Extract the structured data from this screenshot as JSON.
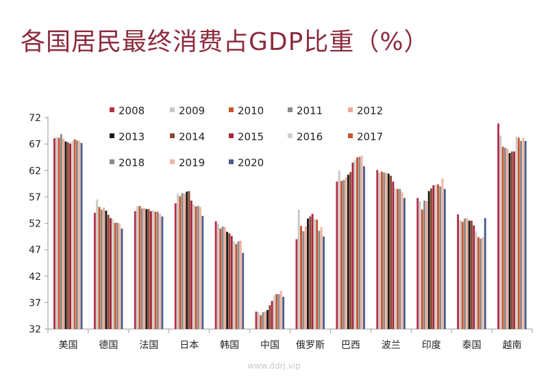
{
  "chart_data": {
    "type": "bar",
    "title": "各国居民最终消费占GDP比重（%）",
    "xlabel": "",
    "ylabel": "",
    "ylim": [
      32,
      72
    ],
    "yticks": [
      32,
      37,
      42,
      47,
      52,
      57,
      62,
      67,
      72
    ],
    "grid": false,
    "legend_position": "top-center",
    "categories": [
      "美国",
      "德国",
      "法国",
      "日本",
      "韩国",
      "中国",
      "俄罗斯",
      "巴西",
      "波兰",
      "印度",
      "泰国",
      "越南"
    ],
    "series": [
      {
        "name": "2008",
        "color": "#b5304a",
        "values": [
          68.1,
          54.0,
          54.3,
          55.8,
          52.4,
          35.3,
          49.0,
          59.9,
          62.1,
          56.8,
          53.7,
          70.9
        ]
      },
      {
        "name": "2009",
        "color": "#c8c8c8",
        "values": [
          68.3,
          56.5,
          55.2,
          57.6,
          51.9,
          35.2,
          54.6,
          62.0,
          61.6,
          56.2,
          52.6,
          68.6
        ]
      },
      {
        "name": "2010",
        "color": "#c8552e",
        "values": [
          68.2,
          55.1,
          55.3,
          57.1,
          51.0,
          34.6,
          51.5,
          60.0,
          61.8,
          54.6,
          52.3,
          66.5
        ]
      },
      {
        "name": "2011",
        "color": "#8a8a8a",
        "values": [
          68.9,
          54.6,
          54.8,
          57.7,
          51.4,
          35.2,
          50.5,
          60.2,
          61.6,
          56.3,
          52.9,
          66.3
        ]
      },
      {
        "name": "2012",
        "color": "#f0aa98",
        "values": [
          68.0,
          55.0,
          54.9,
          57.6,
          51.3,
          35.3,
          51.4,
          60.7,
          61.6,
          56.2,
          53.0,
          66.1
        ]
      },
      {
        "name": "2013",
        "color": "#1a1a1a",
        "values": [
          67.5,
          54.4,
          54.7,
          58.0,
          50.4,
          35.6,
          52.9,
          61.2,
          61.4,
          58.1,
          52.5,
          65.3
        ]
      },
      {
        "name": "2014",
        "color": "#8c4a32",
        "values": [
          67.3,
          53.6,
          54.7,
          58.1,
          50.1,
          36.5,
          53.3,
          61.7,
          61.0,
          58.6,
          52.5,
          65.6
        ]
      },
      {
        "name": "2015",
        "color": "#a8263c",
        "values": [
          67.1,
          53.0,
          54.3,
          56.3,
          49.6,
          37.3,
          53.8,
          63.5,
          59.9,
          59.2,
          51.6,
          65.6
        ]
      },
      {
        "name": "2016",
        "color": "#cfcfcf",
        "values": [
          67.6,
          52.8,
          54.5,
          55.6,
          48.6,
          38.4,
          52.9,
          64.0,
          58.6,
          59.3,
          50.5,
          68.4
        ]
      },
      {
        "name": "2017",
        "color": "#c8552e",
        "values": [
          67.9,
          52.1,
          54.2,
          55.2,
          48.1,
          38.6,
          52.7,
          64.5,
          58.5,
          59.4,
          49.4,
          68.2
        ]
      },
      {
        "name": "2018",
        "color": "#8a8a8a",
        "values": [
          67.7,
          52.1,
          54.2,
          55.3,
          48.6,
          38.6,
          50.6,
          64.6,
          58.5,
          59.0,
          49.1,
          67.6
        ]
      },
      {
        "name": "2019",
        "color": "#f2b3a2",
        "values": [
          67.6,
          52.0,
          53.8,
          55.1,
          48.7,
          39.2,
          51.3,
          64.8,
          57.9,
          60.5,
          49.4,
          68.2
        ]
      },
      {
        "name": "2020",
        "color": "#4a5d8c",
        "values": [
          67.2,
          51.0,
          53.3,
          53.4,
          46.4,
          38.1,
          49.5,
          62.8,
          56.8,
          58.5,
          53.0,
          67.6
        ]
      }
    ]
  },
  "watermark": "www.ddrj.vip"
}
